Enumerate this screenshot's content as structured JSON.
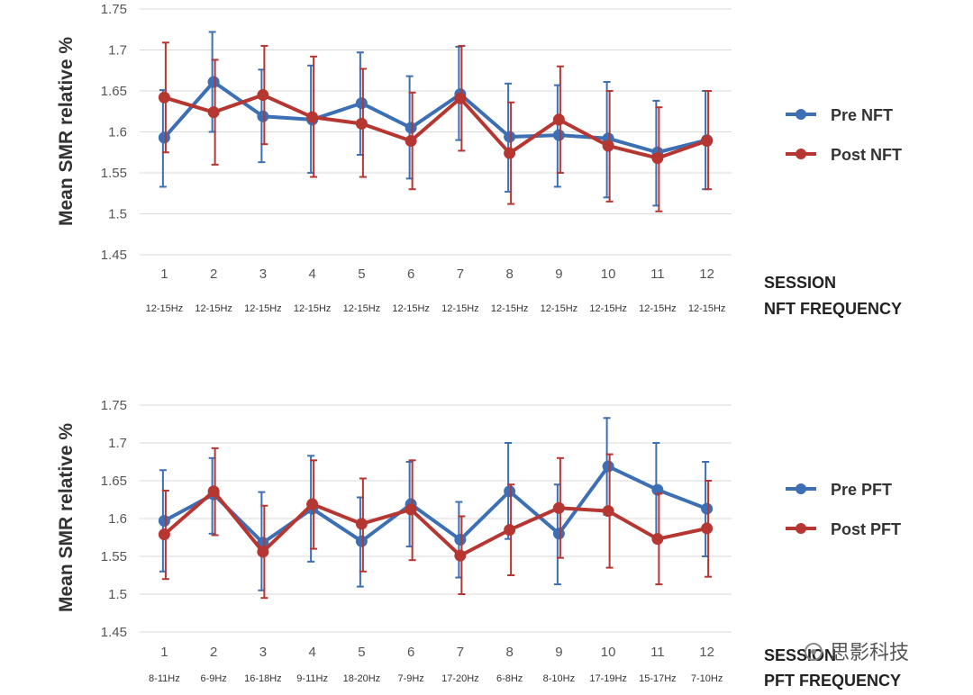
{
  "chart_data": [
    {
      "type": "line",
      "ylabel": "Mean SMR relative %",
      "ylim": [
        1.45,
        1.75
      ],
      "yticks": [
        "1.45",
        "1.5",
        "1.55",
        "1.6",
        "1.65",
        "1.7",
        "1.75"
      ],
      "grid": true,
      "legend": "right",
      "categories": [
        "1",
        "2",
        "3",
        "4",
        "5",
        "6",
        "7",
        "8",
        "9",
        "10",
        "11",
        "12"
      ],
      "frequencies": [
        "12-15Hz",
        "12-15Hz",
        "12-15Hz",
        "12-15Hz",
        "12-15Hz",
        "12-15Hz",
        "12-15Hz",
        "12-15Hz",
        "12-15Hz",
        "12-15Hz",
        "12-15Hz",
        "12-15Hz"
      ],
      "side_labels": [
        "SESSION",
        "NFT FREQUENCY"
      ],
      "series": [
        {
          "name": "Pre NFT",
          "color": "#3d6fb4",
          "values": [
            1.593,
            1.661,
            1.619,
            1.615,
            1.635,
            1.605,
            1.646,
            1.594,
            1.596,
            1.592,
            1.575,
            1.59
          ],
          "err_low": [
            1.533,
            1.6,
            1.563,
            1.55,
            1.572,
            1.543,
            1.59,
            1.527,
            1.533,
            1.52,
            1.51,
            1.53
          ],
          "err_high": [
            1.651,
            1.722,
            1.676,
            1.681,
            1.697,
            1.668,
            1.704,
            1.659,
            1.657,
            1.661,
            1.638,
            1.65
          ]
        },
        {
          "name": "Post NFT",
          "color": "#b63632",
          "values": [
            1.642,
            1.624,
            1.645,
            1.618,
            1.61,
            1.589,
            1.641,
            1.574,
            1.615,
            1.583,
            1.568,
            1.589
          ],
          "err_low": [
            1.575,
            1.56,
            1.585,
            1.545,
            1.545,
            1.53,
            1.577,
            1.512,
            1.55,
            1.515,
            1.503,
            1.53
          ],
          "err_high": [
            1.709,
            1.688,
            1.705,
            1.692,
            1.677,
            1.648,
            1.705,
            1.636,
            1.68,
            1.65,
            1.63,
            1.65
          ]
        }
      ]
    },
    {
      "type": "line",
      "ylabel": "Mean SMR relative %",
      "ylim": [
        1.45,
        1.75
      ],
      "yticks": [
        "1.45",
        "1.5",
        "1.55",
        "1.6",
        "1.65",
        "1.7",
        "1.75"
      ],
      "grid": true,
      "legend": "right",
      "categories": [
        "1",
        "2",
        "3",
        "4",
        "5",
        "6",
        "7",
        "8",
        "9",
        "10",
        "11",
        "12"
      ],
      "frequencies": [
        "8-11Hz",
        "6-9Hz",
        "16-18Hz",
        "9-11Hz",
        "18-20Hz",
        "7-9Hz",
        "17-20Hz",
        "6-8Hz",
        "8-10Hz",
        "17-19Hz",
        "15-17Hz",
        "7-10Hz"
      ],
      "side_labels": [
        "SESSION",
        "PFT FREQUENCY"
      ],
      "series": [
        {
          "name": "Pre PFT",
          "color": "#3d6fb4",
          "values": [
            1.597,
            1.632,
            1.568,
            1.613,
            1.57,
            1.619,
            1.572,
            1.636,
            1.58,
            1.669,
            1.638,
            1.613
          ],
          "err_low": [
            1.53,
            1.58,
            1.505,
            1.543,
            1.51,
            1.563,
            1.522,
            1.573,
            1.513,
            1.605,
            1.575,
            1.55
          ],
          "err_high": [
            1.664,
            1.68,
            1.635,
            1.683,
            1.628,
            1.675,
            1.622,
            1.7,
            1.645,
            1.733,
            1.7,
            1.675
          ]
        },
        {
          "name": "Post PFT",
          "color": "#b63632",
          "values": [
            1.579,
            1.636,
            1.556,
            1.619,
            1.593,
            1.612,
            1.551,
            1.585,
            1.614,
            1.61,
            1.573,
            1.587
          ],
          "err_low": [
            1.52,
            1.578,
            1.495,
            1.56,
            1.53,
            1.545,
            1.5,
            1.525,
            1.548,
            1.535,
            1.513,
            1.523
          ],
          "err_high": [
            1.637,
            1.693,
            1.617,
            1.677,
            1.653,
            1.677,
            1.603,
            1.645,
            1.68,
            1.685,
            1.633,
            1.65
          ]
        }
      ]
    }
  ],
  "watermark": "思影科技"
}
